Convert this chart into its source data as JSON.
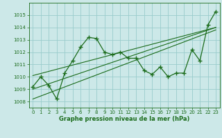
{
  "title": "",
  "xlabel": "Graphe pression niveau de la mer (hPa)",
  "bg_color": "#cce8e8",
  "grid_color": "#99cccc",
  "line_color": "#1a6b1a",
  "ylim": [
    1007.5,
    1016.0
  ],
  "xlim": [
    -0.5,
    23.5
  ],
  "yticks": [
    1008,
    1009,
    1010,
    1011,
    1012,
    1013,
    1014,
    1015
  ],
  "xticks": [
    0,
    1,
    2,
    3,
    4,
    5,
    6,
    7,
    8,
    9,
    10,
    11,
    12,
    13,
    14,
    15,
    16,
    17,
    18,
    19,
    20,
    21,
    22,
    23
  ],
  "pressure": [
    1009.2,
    1010.0,
    1009.3,
    1008.2,
    1010.3,
    1011.3,
    1012.4,
    1013.2,
    1013.1,
    1012.0,
    1011.8,
    1012.0,
    1011.5,
    1011.5,
    1010.5,
    1010.2,
    1010.8,
    1010.0,
    1010.3,
    1010.3,
    1012.2,
    1011.3,
    1014.2,
    1015.3
  ],
  "trend_lower_y0": 1008.2,
  "trend_lower_y1": 1013.8,
  "trend_upper_y0": 1010.1,
  "trend_upper_y1": 1014.0,
  "trend_mid_y0": 1009.0,
  "trend_mid_y1": 1014.0,
  "trend_x0": 0,
  "trend_x1": 23
}
